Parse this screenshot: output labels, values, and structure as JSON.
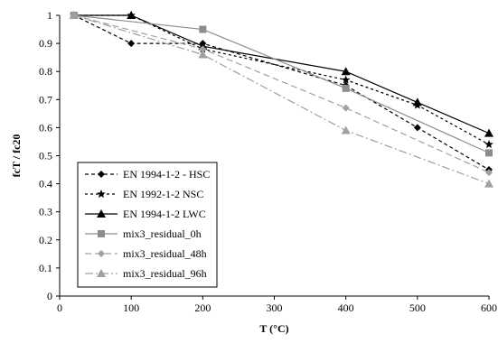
{
  "chart_data": {
    "type": "line",
    "xlabel": "T (°C)",
    "ylabel": "fcT / fc20",
    "xlim": [
      0,
      600
    ],
    "ylim": [
      0,
      1
    ],
    "x_ticks": [
      0,
      100,
      200,
      300,
      400,
      500,
      600
    ],
    "y_ticks": [
      0,
      0.1,
      0.2,
      0.3,
      0.4,
      0.5,
      0.6,
      0.7,
      0.8,
      0.9,
      1
    ],
    "grid": false,
    "legend_position": "bottom-left",
    "series": [
      {
        "name": "EN 1994-1-2 - HSC",
        "color": "#000000",
        "dash": "4,3",
        "marker": "diamond",
        "x": [
          20,
          100,
          200,
          400,
          500,
          600
        ],
        "y": [
          1.0,
          0.9,
          0.9,
          0.75,
          0.6,
          0.45
        ]
      },
      {
        "name": "EN 1992-1-2 NSC",
        "color": "#000000",
        "dash": "3,3",
        "marker": "star",
        "x": [
          20,
          100,
          200,
          400,
          500,
          600
        ],
        "y": [
          1.0,
          1.0,
          0.88,
          0.77,
          0.68,
          0.54
        ]
      },
      {
        "name": "EN 1994-1-2 LWC",
        "color": "#000000",
        "dash": "",
        "marker": "triangle",
        "x": [
          20,
          100,
          200,
          400,
          500,
          600
        ],
        "y": [
          1.0,
          1.0,
          0.89,
          0.8,
          0.69,
          0.58
        ]
      },
      {
        "name": "mix3_residual_0h",
        "color": "#8c8c8c",
        "dash": "",
        "marker": "square",
        "x": [
          20,
          200,
          400,
          600
        ],
        "y": [
          1.0,
          0.95,
          0.74,
          0.51
        ]
      },
      {
        "name": "mix3_residual_48h",
        "color": "#a0a0a0",
        "dash": "7,4",
        "marker": "diamond",
        "x": [
          20,
          200,
          400,
          600
        ],
        "y": [
          1.0,
          0.88,
          0.67,
          0.44
        ]
      },
      {
        "name": "mix3_residual_96h",
        "color": "#a0a0a0",
        "dash": "9,3,2,3",
        "marker": "triangle",
        "x": [
          20,
          200,
          400,
          600
        ],
        "y": [
          1.0,
          0.86,
          0.59,
          0.4
        ]
      }
    ]
  }
}
